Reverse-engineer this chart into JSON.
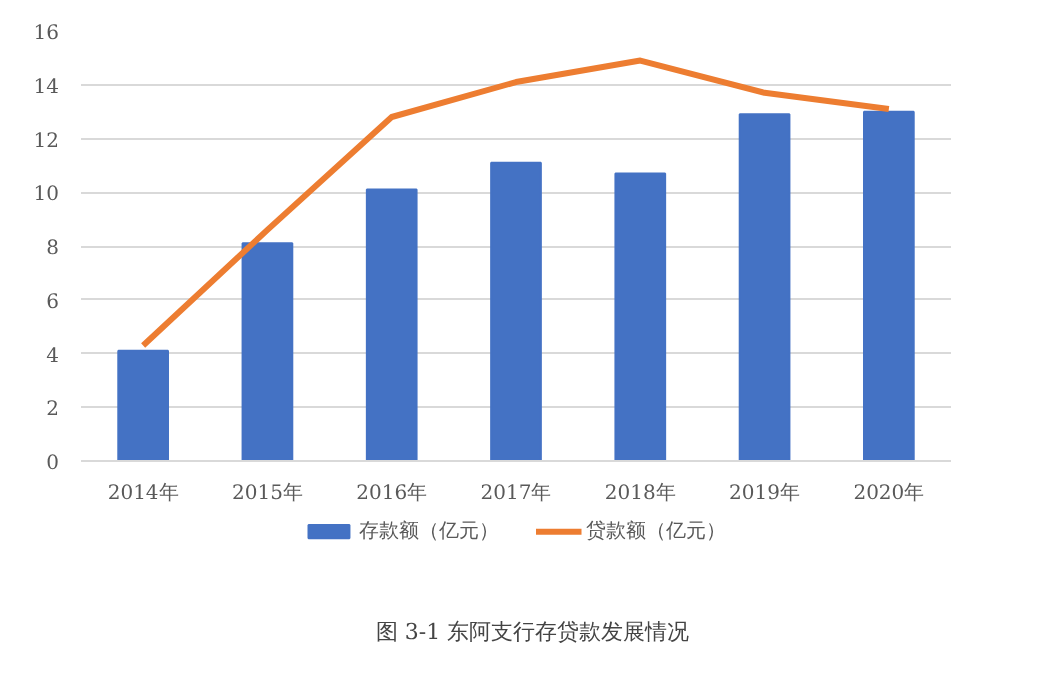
{
  "chart_data": {
    "type": "bar",
    "title": "图 3-1  东阿支行存贷款发展情况",
    "categories": [
      "2014年",
      "2015年",
      "2016年",
      "2017年",
      "2018年",
      "2019年",
      "2020年"
    ],
    "series": [
      {
        "name": "存款额（亿元）",
        "color": "#4472c4",
        "values": [
          4.1,
          8.1,
          10.1,
          11.1,
          10.7,
          12.9,
          13.0
        ]
      },
      {
        "name": "贷款额（亿元）",
        "type": "line",
        "color": "#ed7d31",
        "values": [
          4.3,
          8.6,
          12.8,
          14.1,
          14.9,
          13.7,
          13.1
        ]
      }
    ],
    "ylim": [
      0,
      16
    ],
    "yticks": [
      0,
      2,
      4,
      6,
      8,
      10,
      12,
      14,
      16
    ],
    "grid": "y",
    "legend": "bottom",
    "marker": "none"
  }
}
